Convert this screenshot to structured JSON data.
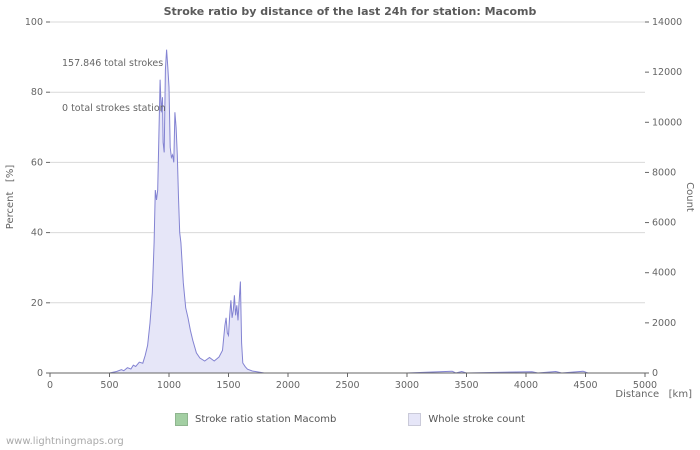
{
  "footer": {
    "url": "www.lightningmaps.org"
  },
  "chart_data": {
    "type": "area",
    "title": "Stroke ratio by distance of the last 24h for station: Macomb",
    "xlabel": "Distance   [km]",
    "ylabel_left": "Percent   [%]",
    "ylabel_right": "Count",
    "xlim": [
      0,
      5000
    ],
    "ylim_left": [
      0,
      100
    ],
    "ylim_right": [
      0,
      14000
    ],
    "xticks": [
      0,
      500,
      1000,
      1500,
      2000,
      2500,
      3000,
      3500,
      4000,
      4500,
      5000
    ],
    "yticks_left": [
      0,
      20,
      40,
      60,
      80,
      100
    ],
    "yticks_right": [
      0,
      2000,
      4000,
      6000,
      8000,
      10000,
      12000,
      14000
    ],
    "grid": "horizontal",
    "grid_color": "#d9d9d9",
    "axis_color": "#666666",
    "annotations": [
      "157.846 total strokes",
      "0 total strokes station"
    ],
    "legend": [
      {
        "label": "Stroke ratio station Macomb",
        "color": "#a3cfa3"
      },
      {
        "label": "Whole stroke count",
        "color": "#e6e6f8"
      }
    ],
    "series": [
      {
        "name": "Stroke ratio station Macomb",
        "axis": "left",
        "color": "#a3cfa3",
        "fill": "none",
        "values": [
          [
            0,
            0
          ],
          [
            5000,
            0
          ]
        ]
      },
      {
        "name": "Whole stroke count",
        "axis": "right",
        "color": "#8383d2",
        "fill": "#e6e6f8",
        "values": [
          [
            0,
            0
          ],
          [
            500,
            0
          ],
          [
            560,
            60
          ],
          [
            600,
            130
          ],
          [
            620,
            90
          ],
          [
            650,
            210
          ],
          [
            680,
            160
          ],
          [
            700,
            310
          ],
          [
            720,
            260
          ],
          [
            750,
            430
          ],
          [
            780,
            390
          ],
          [
            800,
            700
          ],
          [
            820,
            1100
          ],
          [
            840,
            2000
          ],
          [
            860,
            3200
          ],
          [
            875,
            5200
          ],
          [
            885,
            7300
          ],
          [
            895,
            6900
          ],
          [
            905,
            7300
          ],
          [
            915,
            9500
          ],
          [
            925,
            11700
          ],
          [
            935,
            10400
          ],
          [
            945,
            11000
          ],
          [
            950,
            9200
          ],
          [
            960,
            8800
          ],
          [
            970,
            12100
          ],
          [
            980,
            12900
          ],
          [
            990,
            12200
          ],
          [
            1000,
            11400
          ],
          [
            1010,
            9000
          ],
          [
            1020,
            8600
          ],
          [
            1030,
            8700
          ],
          [
            1040,
            8400
          ],
          [
            1050,
            10400
          ],
          [
            1060,
            9800
          ],
          [
            1070,
            8700
          ],
          [
            1080,
            7000
          ],
          [
            1090,
            5600
          ],
          [
            1100,
            5200
          ],
          [
            1120,
            3600
          ],
          [
            1140,
            2600
          ],
          [
            1160,
            2200
          ],
          [
            1180,
            1700
          ],
          [
            1200,
            1300
          ],
          [
            1230,
            800
          ],
          [
            1260,
            600
          ],
          [
            1300,
            480
          ],
          [
            1340,
            620
          ],
          [
            1380,
            480
          ],
          [
            1420,
            640
          ],
          [
            1450,
            900
          ],
          [
            1470,
            1900
          ],
          [
            1480,
            2200
          ],
          [
            1490,
            1600
          ],
          [
            1500,
            1500
          ],
          [
            1510,
            2300
          ],
          [
            1520,
            2900
          ],
          [
            1530,
            2200
          ],
          [
            1540,
            2500
          ],
          [
            1550,
            3100
          ],
          [
            1560,
            2300
          ],
          [
            1570,
            2700
          ],
          [
            1580,
            2100
          ],
          [
            1590,
            2900
          ],
          [
            1600,
            3650
          ],
          [
            1610,
            1200
          ],
          [
            1620,
            400
          ],
          [
            1640,
            250
          ],
          [
            1660,
            150
          ],
          [
            1700,
            80
          ],
          [
            1750,
            40
          ],
          [
            1800,
            0
          ],
          [
            2500,
            0
          ],
          [
            3000,
            0
          ],
          [
            3380,
            70
          ],
          [
            3410,
            0
          ],
          [
            3460,
            60
          ],
          [
            3500,
            0
          ],
          [
            4050,
            50
          ],
          [
            4100,
            0
          ],
          [
            4250,
            60
          ],
          [
            4300,
            0
          ],
          [
            4480,
            70
          ],
          [
            4520,
            0
          ],
          [
            5000,
            0
          ]
        ]
      }
    ]
  }
}
